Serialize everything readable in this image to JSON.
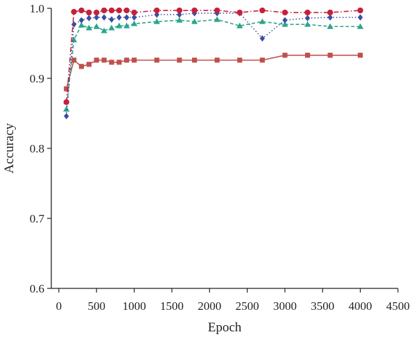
{
  "chart_data": {
    "type": "line",
    "title": "",
    "xlabel": "Epoch",
    "ylabel": "Accuracy",
    "xlim": [
      -100,
      4500
    ],
    "ylim": [
      0.6,
      1.0
    ],
    "x_ticks": [
      0,
      500,
      1000,
      1500,
      2000,
      2500,
      3000,
      3500,
      4000,
      4500
    ],
    "y_ticks": [
      0.6,
      0.7,
      0.8,
      0.9,
      1.0
    ],
    "x_tick_labels": [
      "0",
      "500",
      "1000",
      "1500",
      "2000",
      "2500",
      "3000",
      "3500",
      "4000",
      "4500"
    ],
    "y_tick_labels": [
      "0.6",
      "0.7",
      "0.8",
      "0.9",
      "1.0"
    ],
    "grid": false,
    "legend": "none",
    "series": [
      {
        "color": "#c0504d",
        "marker": "square",
        "line_style": "solid",
        "x": [
          100,
          200,
          300,
          400,
          500,
          600,
          700,
          800,
          900,
          1000,
          1300,
          1600,
          1800,
          2100,
          2400,
          2700,
          3000,
          3300,
          3600,
          4000
        ],
        "y": [
          0.885,
          0.926,
          0.917,
          0.92,
          0.926,
          0.926,
          0.923,
          0.923,
          0.926,
          0.926,
          0.926,
          0.926,
          0.926,
          0.926,
          0.926,
          0.926,
          0.933,
          0.933,
          0.933,
          0.933
        ]
      },
      {
        "color": "#2ca58d",
        "marker": "triangle",
        "line_style": "dashed",
        "x": [
          100,
          200,
          300,
          400,
          500,
          600,
          700,
          800,
          900,
          1000,
          1300,
          1600,
          1800,
          2100,
          2400,
          2700,
          3000,
          3300,
          3600,
          4000
        ],
        "y": [
          0.856,
          0.955,
          0.976,
          0.972,
          0.974,
          0.968,
          0.972,
          0.975,
          0.975,
          0.978,
          0.981,
          0.983,
          0.981,
          0.984,
          0.975,
          0.981,
          0.977,
          0.977,
          0.974,
          0.974
        ]
      },
      {
        "color": "#3a4ea2",
        "marker": "diamond",
        "line_style": "dotted",
        "x": [
          100,
          200,
          300,
          400,
          500,
          600,
          700,
          800,
          900,
          1000,
          1300,
          1600,
          1800,
          2100,
          2400,
          2700,
          3000,
          3300,
          3600,
          4000
        ],
        "y": [
          0.846,
          0.977,
          0.983,
          0.986,
          0.987,
          0.987,
          0.984,
          0.987,
          0.987,
          0.987,
          0.991,
          0.991,
          0.993,
          0.993,
          0.993,
          0.957,
          0.983,
          0.986,
          0.987,
          0.987
        ]
      },
      {
        "color": "#c8203a",
        "marker": "circle",
        "line_style": "dashdot",
        "x": [
          100,
          200,
          300,
          400,
          500,
          600,
          700,
          800,
          900,
          1000,
          1300,
          1600,
          1800,
          2100,
          2400,
          2700,
          3000,
          3300,
          3600,
          4000
        ],
        "y": [
          0.866,
          0.995,
          0.997,
          0.994,
          0.994,
          0.997,
          0.997,
          0.997,
          0.997,
          0.994,
          0.997,
          0.997,
          0.997,
          0.997,
          0.994,
          0.997,
          0.994,
          0.994,
          0.994,
          0.997
        ]
      }
    ]
  }
}
